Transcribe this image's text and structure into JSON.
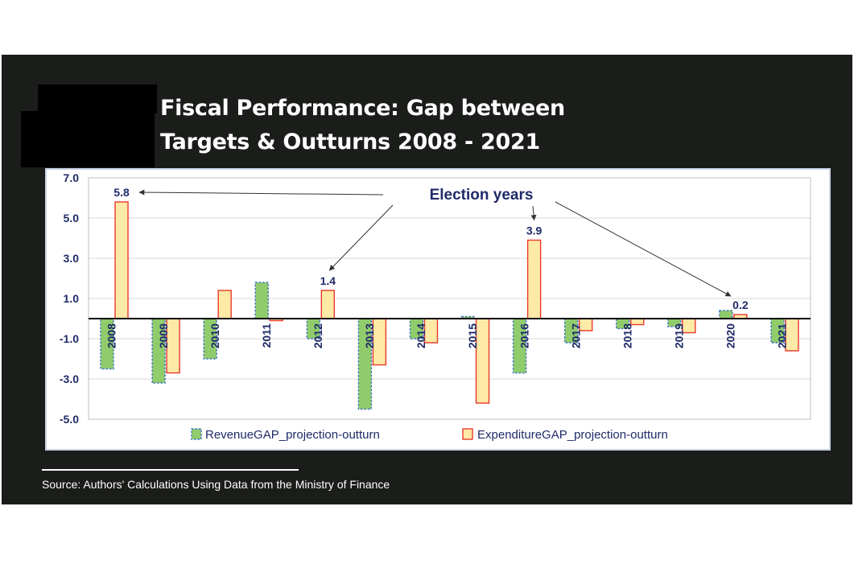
{
  "title": "Fiscal Performance: Gap between\nTargets & Outturns 2008 - 2021",
  "source": "Source: Authors' Calculations Using Data from the Ministry of Finance",
  "colors": {
    "revenue_fill": "#90cc6b",
    "revenue_stroke": "#4472c4",
    "expenditure_fill": "#ffe9a6",
    "expenditure_stroke": "#e8392c",
    "text": "#1f2a68",
    "grid": "#d9d9d9"
  },
  "chart_data": {
    "type": "bar",
    "title": "Fiscal Performance: Gap between Targets & Outturns 2008 - 2021",
    "xlabel": "",
    "ylabel": "",
    "categories": [
      "2008",
      "2009",
      "2010",
      "2011",
      "2012",
      "2013",
      "2014",
      "2015",
      "2016",
      "2017",
      "2018",
      "2019",
      "2020",
      "2021"
    ],
    "series": [
      {
        "name": "RevenueGAP_projection-outturn",
        "values": [
          -2.5,
          -3.2,
          -2.0,
          1.8,
          -1.0,
          -4.5,
          -1.0,
          0.1,
          -2.7,
          -1.2,
          -0.5,
          -0.4,
          0.4,
          -1.2
        ]
      },
      {
        "name": "ExpenditureGAP_projection-outturn",
        "values": [
          5.8,
          -2.7,
          1.4,
          -0.1,
          1.4,
          -2.3,
          -1.2,
          -4.2,
          3.9,
          -0.6,
          -0.3,
          -0.7,
          0.2,
          -1.6
        ]
      }
    ],
    "ylim": [
      -5.0,
      7.0
    ],
    "yticks": [
      "7.0",
      "5.0",
      "3.0",
      "1.0",
      "-1.0",
      "-3.0",
      "-5.0"
    ],
    "ytick_values": [
      7,
      5,
      3,
      1,
      -1,
      -3,
      -5
    ],
    "data_labels": [
      {
        "category": "2008",
        "text": "5.8"
      },
      {
        "category": "2012",
        "text": "1.4"
      },
      {
        "category": "2016",
        "text": "3.9"
      },
      {
        "category": "2020",
        "text": "0.2"
      }
    ],
    "annotation": {
      "text": "Election years",
      "targets": [
        "2008",
        "2012",
        "2016",
        "2020"
      ]
    },
    "legend": {
      "position": "bottom-center"
    },
    "grid": true
  }
}
